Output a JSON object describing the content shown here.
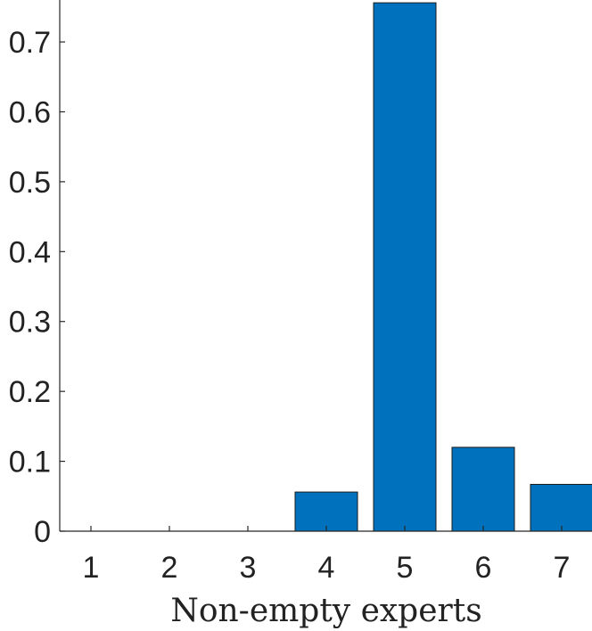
{
  "chart_data": {
    "type": "bar",
    "title": "",
    "xlabel": "Non-empty experts",
    "ylabel": "",
    "categories": [
      "1",
      "2",
      "3",
      "4",
      "5",
      "6",
      "7"
    ],
    "values": [
      0,
      0,
      0,
      0.056,
      0.756,
      0.12,
      0.067
    ],
    "ylim": [
      0,
      0.76
    ],
    "yticks": [
      0,
      0.1,
      0.2,
      0.3,
      0.4,
      0.5,
      0.6,
      0.7
    ],
    "ytick_labels": [
      "0",
      "0.1",
      "0.2",
      "0.3",
      "0.4",
      "0.5",
      "0.6",
      "0.7"
    ],
    "grid": false,
    "colors": {
      "bar": "#0072BD",
      "axis": "#262626",
      "text": "#222222"
    }
  }
}
